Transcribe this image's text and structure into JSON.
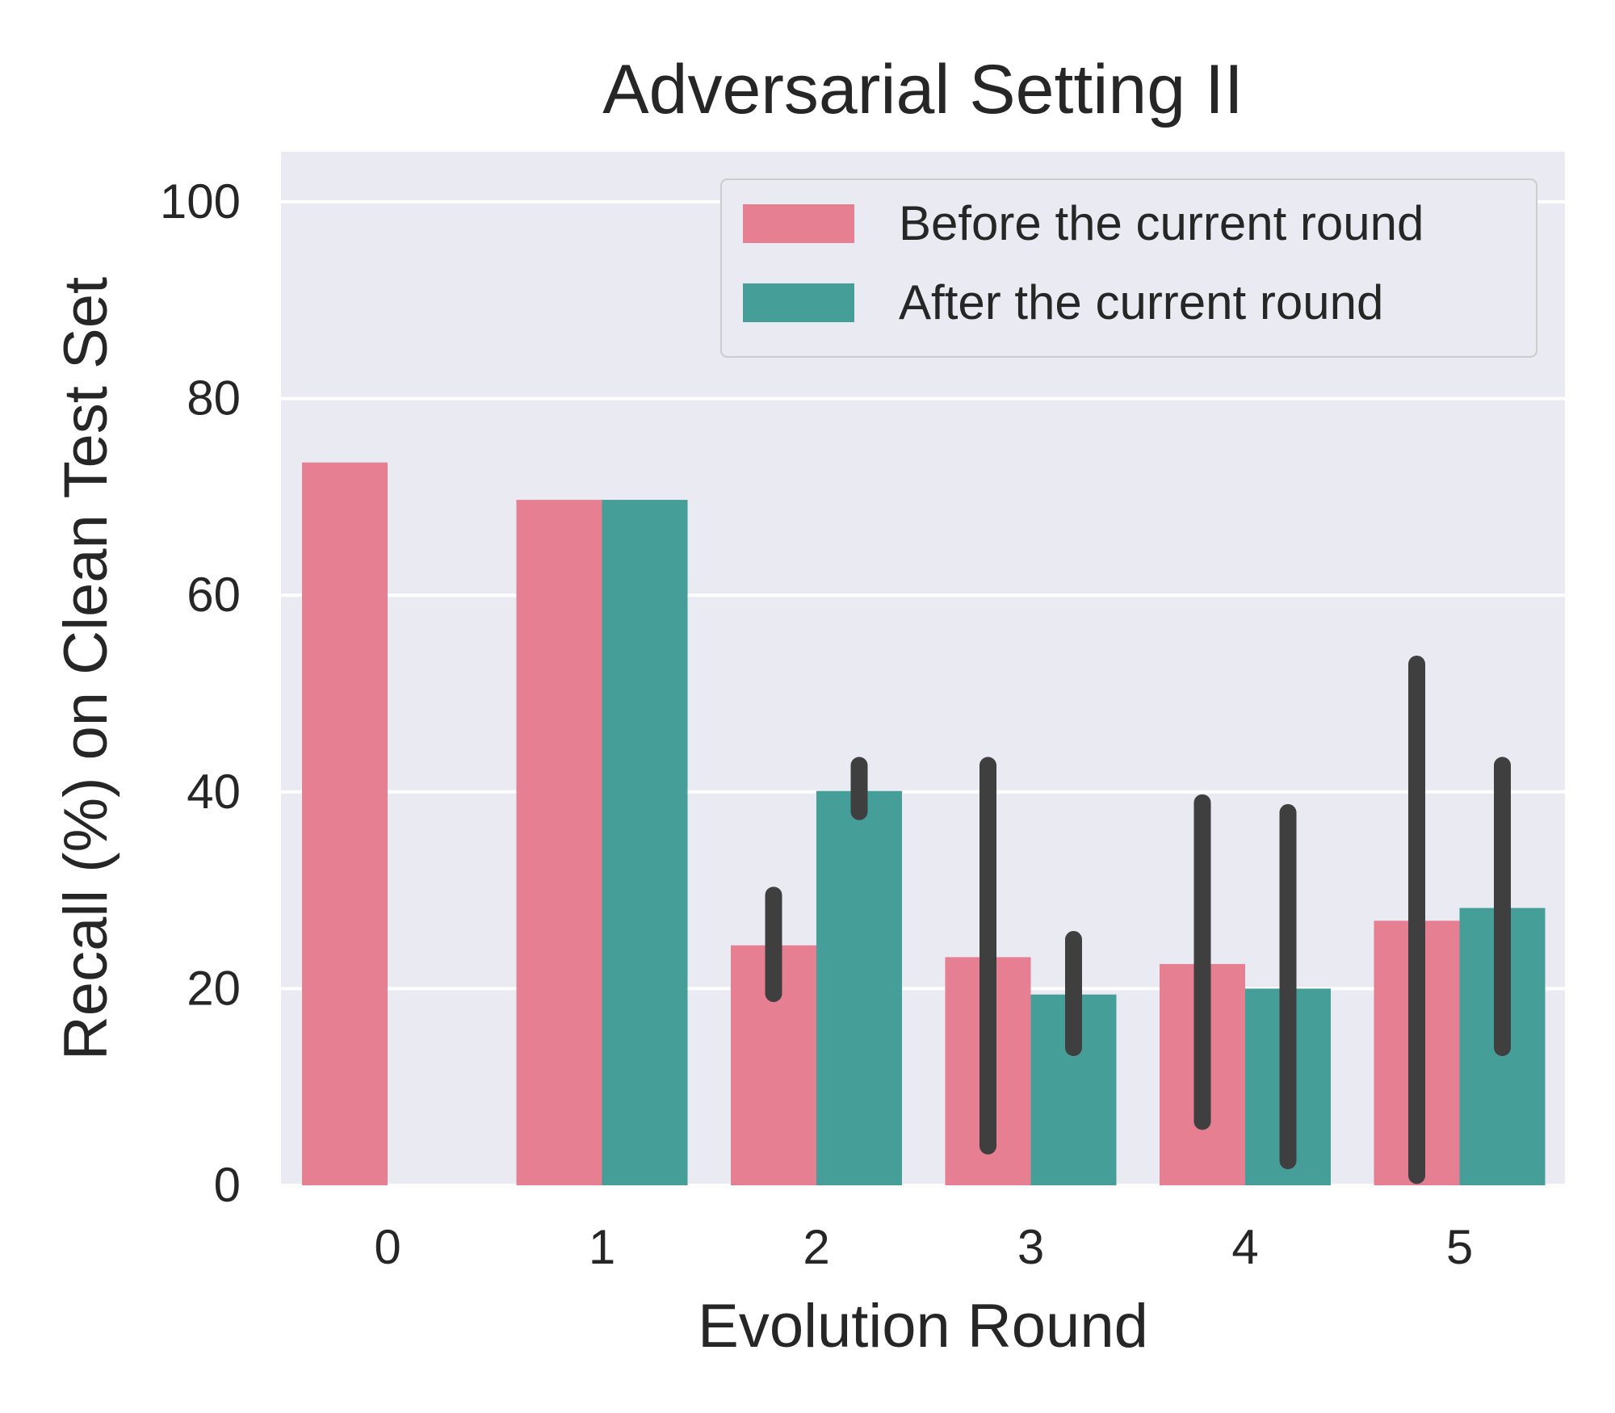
{
  "chart_data": {
    "type": "bar",
    "title": "Adversarial Setting II",
    "xlabel": "Evolution Round",
    "ylabel": "Recall (%) on Clean Test Set",
    "categories": [
      "0",
      "1",
      "2",
      "3",
      "4",
      "5"
    ],
    "ylim": [
      0,
      105
    ],
    "yticks": [
      0,
      20,
      40,
      60,
      80,
      100
    ],
    "grid": true,
    "legend_position": "top-right",
    "series": [
      {
        "name": "Before the current round",
        "color": "#e77f92",
        "values": [
          73.5,
          69.7,
          24.4,
          23.2,
          22.5,
          26.9
        ],
        "error_low": [
          null,
          null,
          19.5,
          4.0,
          6.5,
          1.0
        ],
        "error_high": [
          null,
          null,
          29.5,
          42.7,
          38.9,
          53.0
        ]
      },
      {
        "name": "After the current round",
        "color": "#469e98",
        "values": [
          null,
          69.7,
          40.1,
          19.4,
          20.0,
          28.2
        ],
        "error_low": [
          null,
          null,
          38.0,
          14.0,
          2.5,
          14.0
        ],
        "error_high": [
          null,
          null,
          42.7,
          25.0,
          37.9,
          42.7
        ]
      }
    ],
    "error_bar_color": "#3f3f3f"
  }
}
